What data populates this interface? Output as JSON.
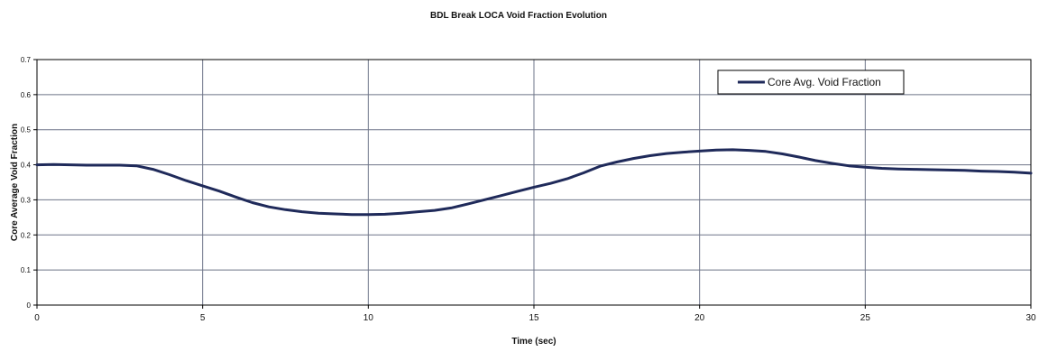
{
  "chart_data": {
    "type": "line",
    "title": "BDL Break LOCA Void Fraction Evolution",
    "xlabel": "Time (sec)",
    "ylabel": "Core Average Void Fraction",
    "xlim": [
      0,
      30
    ],
    "ylim": [
      0,
      0.7
    ],
    "x_ticks": [
      "0",
      "5",
      "10",
      "15",
      "20",
      "25",
      "30"
    ],
    "y_ticks": [
      "0",
      "0.1",
      "0.2",
      "0.3",
      "0.4",
      "0.5",
      "0.6",
      "0.7"
    ],
    "grid": true,
    "legend_position": "top-right",
    "series": [
      {
        "name": "Core Avg. Void Fraction",
        "color": "#1f2a5a",
        "x": [
          0,
          0.5,
          1,
          1.5,
          2,
          2.5,
          3,
          3.5,
          4,
          4.5,
          5,
          5.5,
          6,
          6.5,
          7,
          7.5,
          8,
          8.5,
          9,
          9.5,
          10,
          10.5,
          11,
          11.5,
          12,
          12.5,
          13,
          13.5,
          14,
          14.5,
          15,
          15.5,
          16,
          16.5,
          17,
          17.5,
          18,
          18.5,
          19,
          19.5,
          20,
          20.5,
          21,
          21.5,
          22,
          22.5,
          23,
          23.5,
          24,
          24.5,
          25,
          25.5,
          26,
          26.5,
          27,
          27.5,
          28,
          28.5,
          29,
          29.5,
          30
        ],
        "y": [
          0.4,
          0.401,
          0.4,
          0.399,
          0.399,
          0.399,
          0.397,
          0.387,
          0.372,
          0.355,
          0.34,
          0.325,
          0.308,
          0.292,
          0.28,
          0.272,
          0.266,
          0.262,
          0.26,
          0.258,
          0.258,
          0.259,
          0.262,
          0.266,
          0.27,
          0.277,
          0.288,
          0.3,
          0.312,
          0.324,
          0.336,
          0.347,
          0.36,
          0.377,
          0.396,
          0.408,
          0.418,
          0.426,
          0.432,
          0.436,
          0.439,
          0.442,
          0.443,
          0.441,
          0.438,
          0.431,
          0.422,
          0.412,
          0.404,
          0.397,
          0.393,
          0.39,
          0.388,
          0.387,
          0.386,
          0.385,
          0.384,
          0.382,
          0.381,
          0.379,
          0.376
        ]
      }
    ]
  }
}
